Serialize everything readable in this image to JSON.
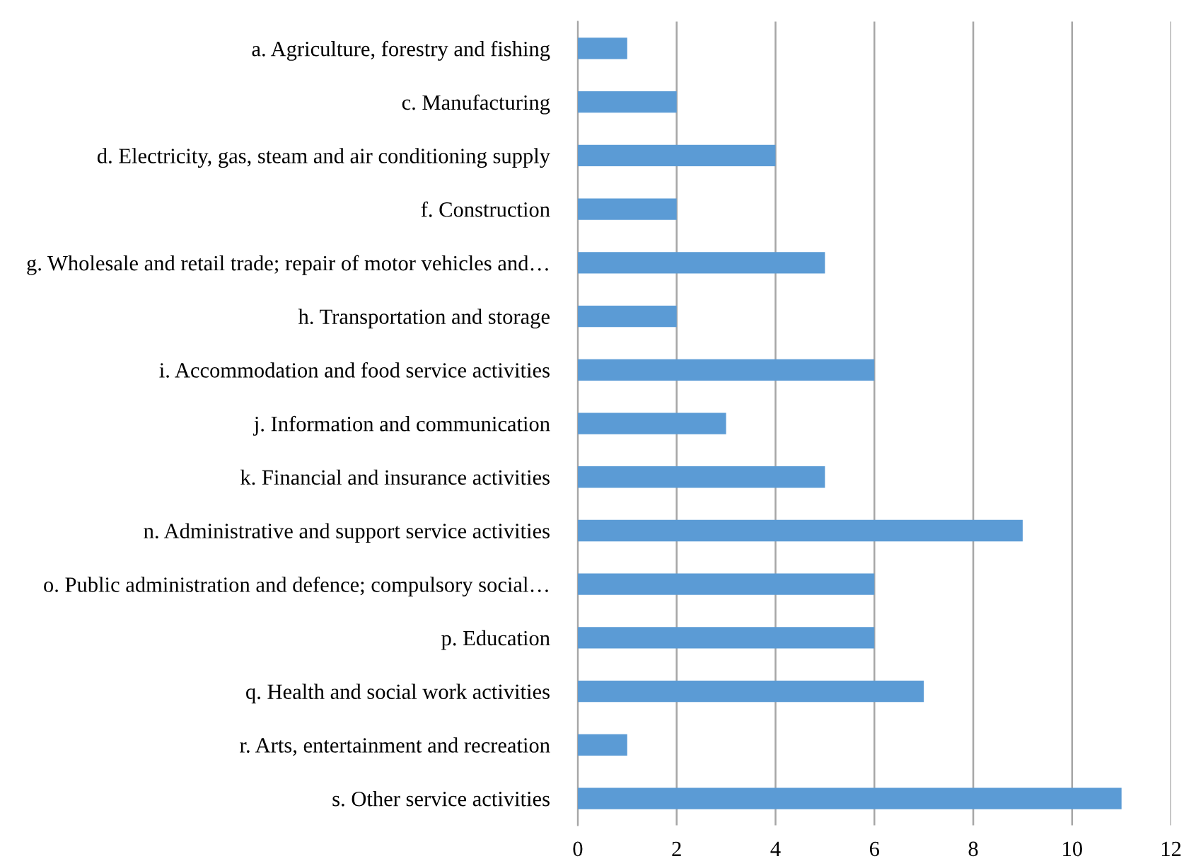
{
  "chart_data": {
    "type": "bar",
    "orientation": "horizontal",
    "categories": [
      "a. Agriculture, forestry and fishing",
      "c. Manufacturing",
      "d. Electricity, gas, steam and air conditioning supply",
      "f. Construction",
      "g. Wholesale and retail trade; repair of motor vehicles and…",
      "h. Transportation and storage",
      "i. Accommodation and food service activities",
      "j. Information and communication",
      "k. Financial and insurance activities",
      "n. Administrative and support service activities",
      "o. Public administration and defence; compulsory social…",
      "p. Education",
      "q. Health and social work activities",
      "r. Arts, entertainment and recreation",
      "s. Other service activities"
    ],
    "values": [
      1,
      2,
      4,
      2,
      5,
      2,
      6,
      3,
      5,
      9,
      6,
      6,
      7,
      1,
      11
    ],
    "color": "#5b9bd5",
    "xlim": [
      0,
      12
    ],
    "xticks": [
      0,
      2,
      4,
      6,
      8,
      10,
      12
    ],
    "grid": "x"
  }
}
